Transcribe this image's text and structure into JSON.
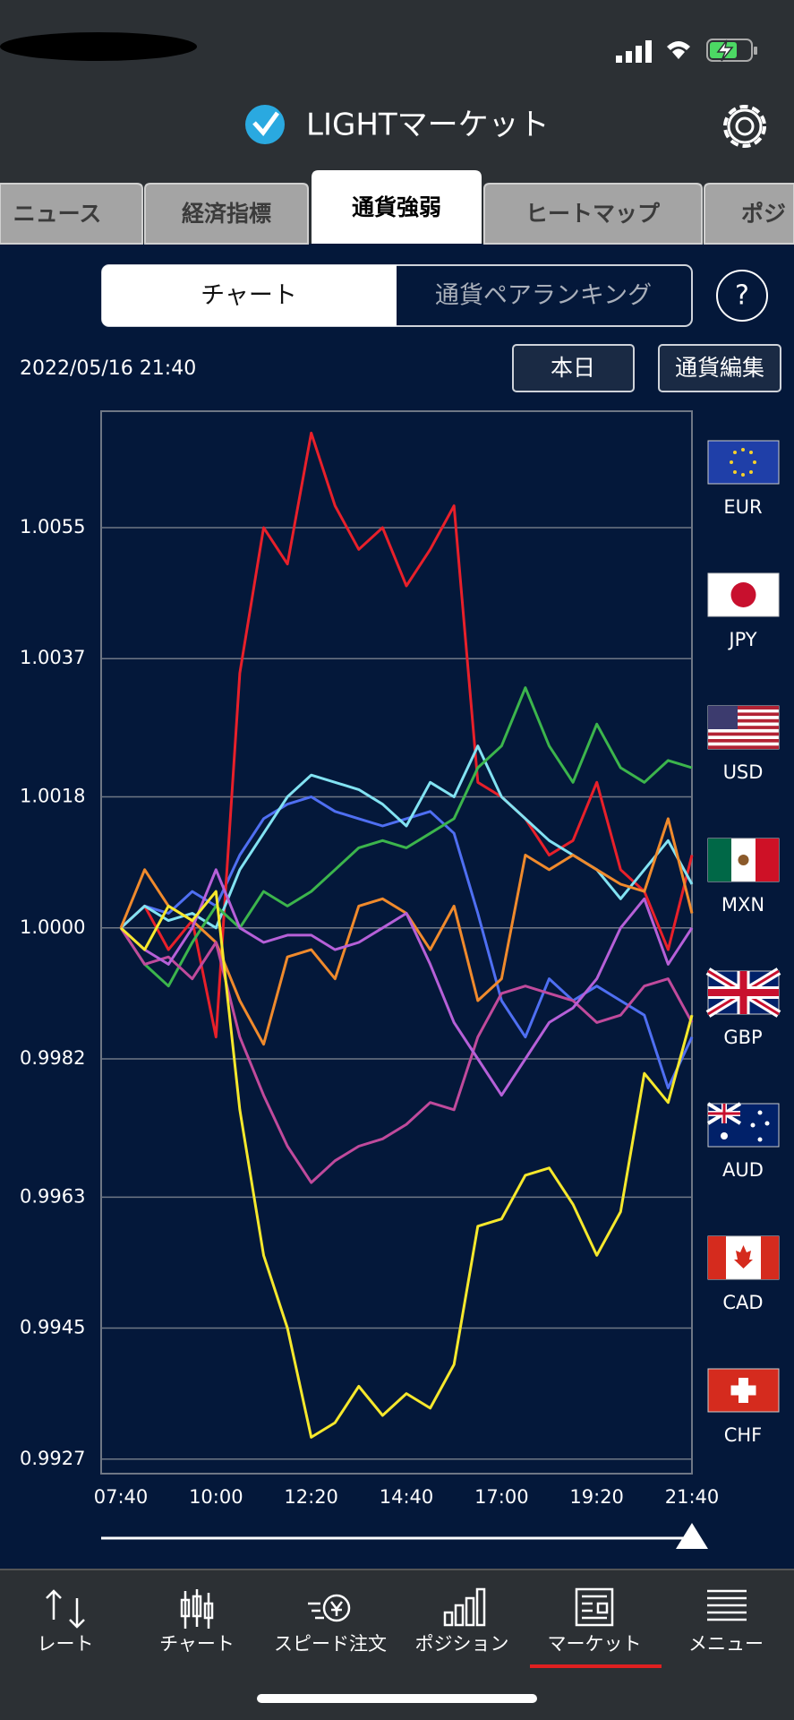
{
  "header": {
    "title": "LIGHTマーケット"
  },
  "tabs": [
    "ニュース",
    "経済指標",
    "通貨強弱",
    "ヒートマップ",
    "ポジ"
  ],
  "segments": [
    "チャート",
    "通貨ペアランキング"
  ],
  "help": "?",
  "timestamp": "2022/05/16 21:40",
  "buttons": [
    "本日",
    "通貨編集"
  ],
  "chart_data": {
    "type": "line",
    "categories": [
      "07:40",
      null,
      null,
      null,
      "10:00",
      null,
      null,
      null,
      "12:20",
      null,
      null,
      null,
      "14:40",
      null,
      null,
      null,
      "17:00",
      null,
      null,
      null,
      "19:20",
      null,
      null,
      null,
      "21:40"
    ],
    "series": [
      {
        "name": "EUR",
        "color": "#4f6ff2",
        "values": [
          1.0,
          1.0003,
          1.0002,
          1.0005,
          1.0003,
          1.001,
          1.0015,
          1.0017,
          1.0018,
          1.0016,
          1.0015,
          1.0014,
          1.0015,
          1.0016,
          1.0013,
          1.0002,
          0.999,
          0.9985,
          0.9993,
          0.999,
          0.9992,
          0.999,
          0.9988,
          0.9978,
          0.9985
        ]
      },
      {
        "name": "JPY",
        "color": "#e8202a",
        "values": [
          1.0,
          1.0003,
          0.9997,
          1.0001,
          0.9985,
          1.0035,
          1.0055,
          1.005,
          1.0068,
          1.0058,
          1.0052,
          1.0055,
          1.0047,
          1.0052,
          1.0058,
          1.002,
          1.0018,
          1.0015,
          1.001,
          1.0012,
          1.002,
          1.0008,
          1.0005,
          0.9997,
          1.001
        ]
      },
      {
        "name": "USD",
        "color": "#82e2f2",
        "values": [
          1.0,
          1.0003,
          1.0001,
          1.0002,
          1.0,
          1.0008,
          1.0013,
          1.0018,
          1.0021,
          1.002,
          1.0019,
          1.0017,
          1.0014,
          1.002,
          1.0018,
          1.0025,
          1.0018,
          1.0015,
          1.0012,
          1.001,
          1.0008,
          1.0004,
          1.0008,
          1.0012,
          1.0006
        ]
      },
      {
        "name": "MXN",
        "color": "#3cb54c",
        "values": [
          1.0,
          0.9995,
          0.9992,
          0.9998,
          1.0003,
          1.0,
          1.0005,
          1.0003,
          1.0005,
          1.0008,
          1.0011,
          1.0012,
          1.0011,
          1.0013,
          1.0015,
          1.0022,
          1.0025,
          1.0033,
          1.0025,
          1.002,
          1.0028,
          1.0022,
          1.002,
          1.0023,
          1.0022
        ]
      },
      {
        "name": "GBP",
        "color": "#f08a2c",
        "values": [
          1.0,
          1.0008,
          1.0003,
          1.0001,
          0.9998,
          0.999,
          0.9984,
          0.9996,
          0.9997,
          0.9993,
          1.0003,
          1.0004,
          1.0002,
          0.9997,
          1.0003,
          0.999,
          0.9993,
          1.001,
          1.0008,
          1.001,
          1.0008,
          1.0006,
          1.0005,
          1.0015,
          1.0002
        ]
      },
      {
        "name": "AUD",
        "color": "#c04a9c",
        "values": [
          1.0,
          0.9995,
          0.9996,
          0.9993,
          0.9998,
          0.9985,
          0.9977,
          0.997,
          0.9965,
          0.9968,
          0.997,
          0.9971,
          0.9973,
          0.9976,
          0.9975,
          0.9985,
          0.9991,
          0.9992,
          0.9991,
          0.999,
          0.9987,
          0.9988,
          0.9992,
          0.9993,
          0.9987
        ]
      },
      {
        "name": "CAD",
        "color": "#b660d8",
        "values": [
          1.0,
          0.9997,
          0.9995,
          1.0,
          1.0008,
          1.0,
          0.9998,
          0.9999,
          0.9999,
          0.9997,
          0.9998,
          1.0,
          1.0002,
          0.9995,
          0.9987,
          0.9982,
          0.9977,
          0.9982,
          0.9987,
          0.9989,
          0.9993,
          1.0,
          1.0004,
          0.9995,
          1.0
        ]
      },
      {
        "name": "CHF",
        "color": "#f6e82c",
        "values": [
          1.0,
          0.9997,
          1.0003,
          1.0001,
          1.0005,
          0.9975,
          0.9955,
          0.9945,
          0.993,
          0.9932,
          0.9937,
          0.9933,
          0.9936,
          0.9934,
          0.994,
          0.9959,
          0.996,
          0.9966,
          0.9967,
          0.9962,
          0.9955,
          0.9961,
          0.998,
          0.9976,
          0.9988
        ]
      }
    ],
    "ylim": [
      0.9925,
      1.0071
    ],
    "yticks": [
      0.9927,
      0.9945,
      0.9963,
      0.9982,
      {
        "value": 1,
        "label": "1.0000"
      },
      1.0018,
      1.0037,
      1.0055
    ],
    "grid": true
  },
  "nav": [
    "レート",
    "チャート",
    "スピード注文",
    "ポジション",
    "マーケット",
    "メニュー"
  ]
}
